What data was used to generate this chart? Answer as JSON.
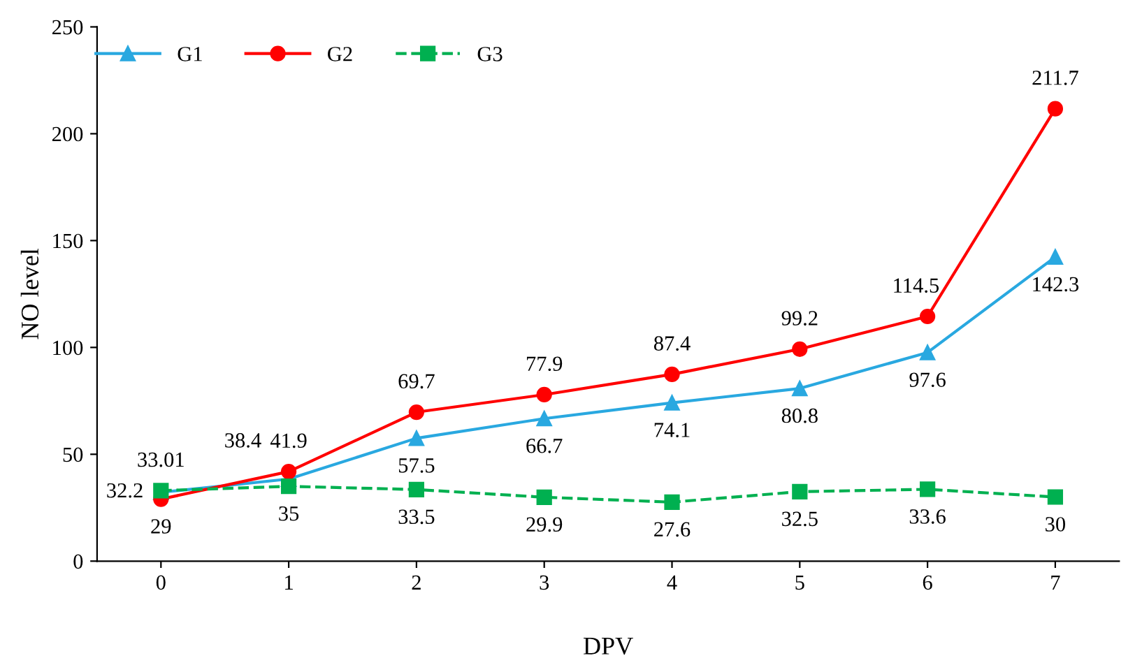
{
  "chart_data": {
    "type": "line",
    "xlabel": "DPV",
    "ylabel": "NO level",
    "categories": [
      "0",
      "1",
      "2",
      "3",
      "4",
      "5",
      "6",
      "7"
    ],
    "series": [
      {
        "name": "G1",
        "color": "#29a8e0",
        "marker": "triangle",
        "line_style": "solid",
        "values": [
          32.2,
          38.4,
          57.5,
          66.7,
          74.1,
          80.8,
          97.6,
          142.3
        ]
      },
      {
        "name": "G2",
        "color": "#ff0000",
        "marker": "circle",
        "line_style": "solid",
        "values": [
          29,
          41.9,
          69.7,
          77.9,
          87.4,
          99.2,
          114.5,
          211.7
        ]
      },
      {
        "name": "G3",
        "color": "#00b050",
        "marker": "square",
        "line_style": "dashed",
        "values": [
          33.01,
          35,
          33.5,
          29.9,
          27.6,
          32.5,
          33.6,
          30
        ]
      }
    ],
    "ylim": [
      0,
      250
    ],
    "yticks": [
      0,
      50,
      100,
      150,
      200,
      250
    ],
    "data_labels": true,
    "grid": false,
    "legend": "top left"
  }
}
